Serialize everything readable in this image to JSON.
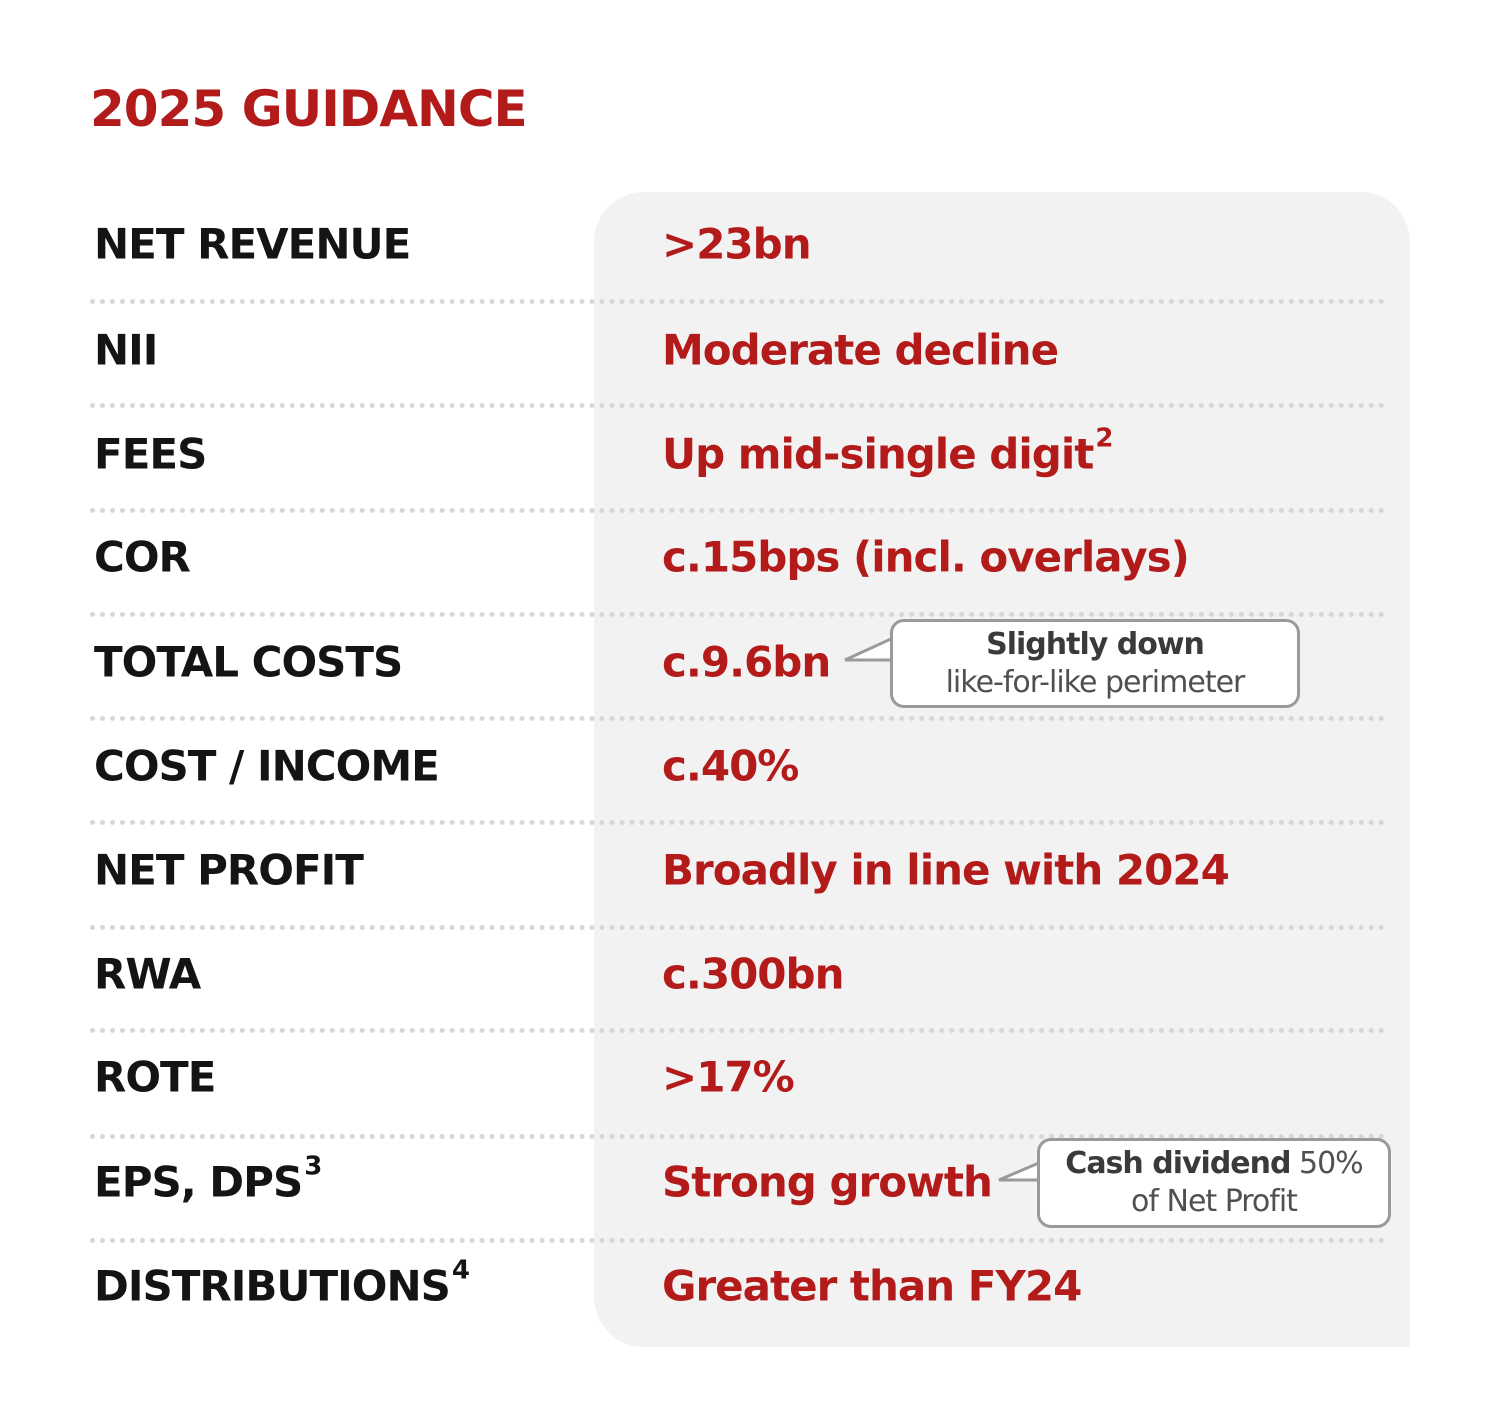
{
  "title": "2025 GUIDANCE",
  "rows": [
    {
      "label": "NET REVENUE",
      "label_sup": "",
      "value": ">23bn",
      "value_sup": ""
    },
    {
      "label": "NII",
      "label_sup": "",
      "value": "Moderate decline",
      "value_sup": ""
    },
    {
      "label": "FEES",
      "label_sup": "",
      "value": "Up mid-single digit",
      "value_sup": "2"
    },
    {
      "label": "COR",
      "label_sup": "",
      "value": "c.15bps (incl. overlays)",
      "value_sup": ""
    },
    {
      "label": "TOTAL COSTS",
      "label_sup": "",
      "value": "c.9.6bn",
      "value_sup": ""
    },
    {
      "label": "COST / INCOME",
      "label_sup": "",
      "value": "c.40%",
      "value_sup": ""
    },
    {
      "label": "NET PROFIT",
      "label_sup": "",
      "value": "Broadly in line with 2024",
      "value_sup": ""
    },
    {
      "label": "RWA",
      "label_sup": "",
      "value": "c.300bn",
      "value_sup": ""
    },
    {
      "label": "ROTE",
      "label_sup": "",
      "value": ">17%",
      "value_sup": ""
    },
    {
      "label": "EPS, DPS",
      "label_sup": "3",
      "value": "Strong growth",
      "value_sup": ""
    },
    {
      "label": "DISTRIBUTIONS",
      "label_sup": "4",
      "value": "Greater than FY24",
      "value_sup": ""
    }
  ],
  "callouts": {
    "costs": {
      "bold": "Slightly down",
      "text": "like-for-like perimeter"
    },
    "eps": {
      "bold": "Cash dividend",
      "text1": " 50%",
      "text2": "of Net Profit"
    }
  },
  "colors": {
    "accent": "#b31b1b",
    "label": "#141414",
    "panel": "#f2f2f2"
  }
}
